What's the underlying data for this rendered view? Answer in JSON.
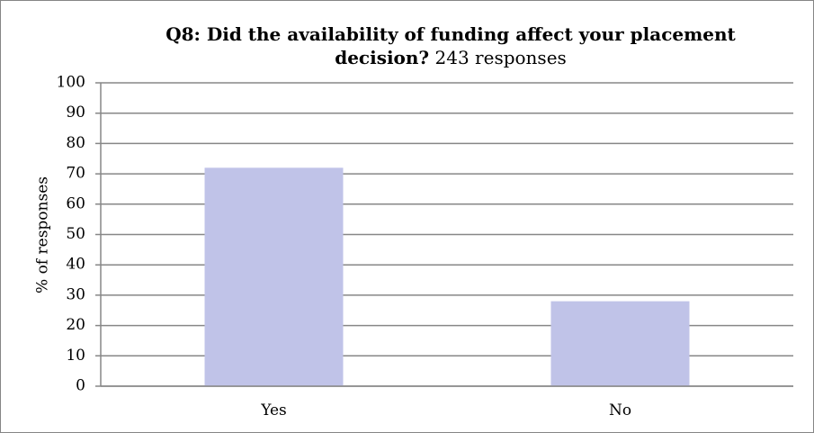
{
  "chart_data": {
    "type": "bar",
    "title": "Q8: Did the availability of funding affect your placement decision?",
    "subtitle": "243 responses",
    "xlabel": "",
    "ylabel": "% of responses",
    "categories": [
      "Yes",
      "No"
    ],
    "values": [
      72,
      28
    ],
    "ylim": [
      0,
      100
    ],
    "yticks": [
      "0",
      "10",
      "20",
      "30",
      "40",
      "50",
      "60",
      "70",
      "80",
      "90",
      "100"
    ],
    "grid": true,
    "legend": "none",
    "colors": {
      "bar": "#c0c3e8",
      "grid": "#878787",
      "axis": "#878787"
    }
  }
}
